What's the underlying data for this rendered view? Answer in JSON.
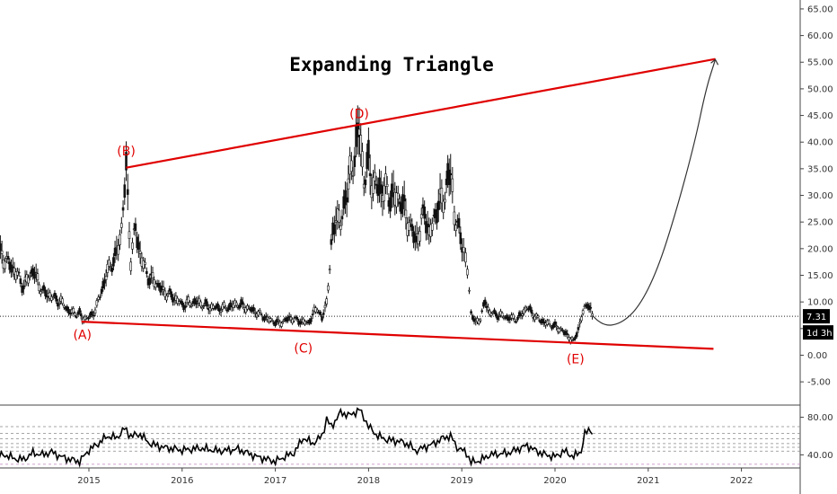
{
  "chart_data": [
    {
      "type": "candlestick",
      "title": "Expanding Triangle",
      "x_tick_labels": [
        "2015",
        "2016",
        "2017",
        "2018",
        "2019",
        "2020",
        "2021",
        "2022"
      ],
      "y_tick_labels": [
        "65.00",
        "60.00",
        "55.00",
        "50.00",
        "45.00",
        "40.00",
        "35.00",
        "30.00",
        "25.00",
        "20.00",
        "15.00",
        "10.00",
        "5.00",
        "0.00",
        "-5.00"
      ],
      "ylim": [
        -7,
        66
      ],
      "price_path": [
        [
          2014.0,
          20
        ],
        [
          2014.1,
          18
        ],
        [
          2014.2,
          16
        ],
        [
          2014.3,
          13
        ],
        [
          2014.4,
          16
        ],
        [
          2014.5,
          12
        ],
        [
          2014.6,
          11
        ],
        [
          2014.7,
          10
        ],
        [
          2014.8,
          8
        ],
        [
          2014.9,
          7.8
        ],
        [
          2014.96,
          6.5
        ],
        [
          2015.05,
          8
        ],
        [
          2015.12,
          11
        ],
        [
          2015.2,
          16
        ],
        [
          2015.28,
          18
        ],
        [
          2015.35,
          24
        ],
        [
          2015.4,
          35
        ],
        [
          2015.45,
          18
        ],
        [
          2015.5,
          24
        ],
        [
          2015.55,
          19
        ],
        [
          2015.62,
          15
        ],
        [
          2015.7,
          14
        ],
        [
          2015.8,
          12
        ],
        [
          2015.9,
          11
        ],
        [
          2016.0,
          9.5
        ],
        [
          2016.15,
          10
        ],
        [
          2016.3,
          9
        ],
        [
          2016.45,
          8.8
        ],
        [
          2016.6,
          9.6
        ],
        [
          2016.75,
          8.5
        ],
        [
          2016.85,
          7.5
        ],
        [
          2016.95,
          6.5
        ],
        [
          2017.05,
          6
        ],
        [
          2017.15,
          7
        ],
        [
          2017.25,
          6.5
        ],
        [
          2017.35,
          6
        ],
        [
          2017.45,
          9
        ],
        [
          2017.5,
          6.8
        ],
        [
          2017.55,
          10
        ],
        [
          2017.6,
          20
        ],
        [
          2017.65,
          27
        ],
        [
          2017.7,
          24
        ],
        [
          2017.75,
          30
        ],
        [
          2017.8,
          33
        ],
        [
          2017.85,
          38
        ],
        [
          2017.9,
          42.5
        ],
        [
          2017.95,
          33
        ],
        [
          2018.0,
          36
        ],
        [
          2018.05,
          32
        ],
        [
          2018.15,
          31
        ],
        [
          2018.25,
          30
        ],
        [
          2018.35,
          29
        ],
        [
          2018.45,
          24
        ],
        [
          2018.5,
          22
        ],
        [
          2018.55,
          23
        ],
        [
          2018.6,
          28
        ],
        [
          2018.65,
          22
        ],
        [
          2018.7,
          26
        ],
        [
          2018.75,
          28
        ],
        [
          2018.82,
          30
        ],
        [
          2018.88,
          36
        ],
        [
          2018.92,
          27
        ],
        [
          2018.97,
          23
        ],
        [
          2019.02,
          20
        ],
        [
          2019.06,
          17
        ],
        [
          2019.1,
          8
        ],
        [
          2019.15,
          6
        ],
        [
          2019.2,
          7
        ],
        [
          2019.25,
          10
        ],
        [
          2019.3,
          8
        ],
        [
          2019.4,
          7.5
        ],
        [
          2019.5,
          7
        ],
        [
          2019.6,
          6.8
        ],
        [
          2019.7,
          9
        ],
        [
          2019.8,
          7
        ],
        [
          2019.9,
          6
        ],
        [
          2020.0,
          5.5
        ],
        [
          2020.08,
          4.5
        ],
        [
          2020.15,
          3.5
        ],
        [
          2020.2,
          2.5
        ],
        [
          2020.25,
          5
        ],
        [
          2020.3,
          8
        ],
        [
          2020.35,
          10
        ],
        [
          2020.4,
          7.5
        ]
      ],
      "projection_path": [
        [
          2020.4,
          7.5
        ],
        [
          2020.5,
          5.5
        ],
        [
          2020.7,
          5.8
        ],
        [
          2020.9,
          9
        ],
        [
          2021.1,
          16
        ],
        [
          2021.3,
          27
        ],
        [
          2021.5,
          40
        ],
        [
          2021.62,
          50
        ],
        [
          2021.72,
          55.5
        ]
      ],
      "triangle_lines": [
        {
          "from": [
            2015.4,
            35.2
          ],
          "to": [
            2021.72,
            55.6
          ]
        },
        {
          "from": [
            2014.92,
            6.3
          ],
          "to": [
            2021.7,
            1.2
          ]
        }
      ],
      "wave_labels": [
        {
          "text": "(A)",
          "x": 2014.93,
          "y": 3.0
        },
        {
          "text": "(B)",
          "x": 2015.4,
          "y": 37.5
        },
        {
          "text": "(C)",
          "x": 2017.3,
          "y": 0.5
        },
        {
          "text": "(D)",
          "x": 2017.9,
          "y": 44.5
        },
        {
          "text": "(E)",
          "x": 2020.22,
          "y": -1.5
        }
      ],
      "current_price": {
        "label": "7.31",
        "value": 7.31
      },
      "time_badge": {
        "label": "1d 3h"
      }
    },
    {
      "type": "line",
      "title": "",
      "y_tick_labels": [
        "80.00",
        "40.00"
      ],
      "ylim": [
        27,
        92
      ],
      "levels": [
        70,
        63,
        57,
        52,
        48,
        44,
        30
      ],
      "values": [
        [
          2014.0,
          38
        ],
        [
          2014.1,
          40
        ],
        [
          2014.2,
          36
        ],
        [
          2014.3,
          35
        ],
        [
          2014.4,
          42
        ],
        [
          2014.5,
          40
        ],
        [
          2014.6,
          43
        ],
        [
          2014.7,
          38
        ],
        [
          2014.8,
          35
        ],
        [
          2014.9,
          33
        ],
        [
          2015.0,
          45
        ],
        [
          2015.1,
          52
        ],
        [
          2015.2,
          60
        ],
        [
          2015.3,
          58
        ],
        [
          2015.38,
          68
        ],
        [
          2015.45,
          60
        ],
        [
          2015.55,
          62
        ],
        [
          2015.65,
          52
        ],
        [
          2015.8,
          48
        ],
        [
          2016.0,
          45
        ],
        [
          2016.2,
          47
        ],
        [
          2016.4,
          44
        ],
        [
          2016.6,
          46
        ],
        [
          2016.8,
          38
        ],
        [
          2017.0,
          33
        ],
        [
          2017.1,
          38
        ],
        [
          2017.2,
          42
        ],
        [
          2017.3,
          58
        ],
        [
          2017.4,
          52
        ],
        [
          2017.5,
          60
        ],
        [
          2017.55,
          78
        ],
        [
          2017.6,
          70
        ],
        [
          2017.7,
          85
        ],
        [
          2017.8,
          82
        ],
        [
          2017.9,
          88
        ],
        [
          2017.95,
          80
        ],
        [
          2018.0,
          70
        ],
        [
          2018.1,
          60
        ],
        [
          2018.2,
          56
        ],
        [
          2018.35,
          54
        ],
        [
          2018.45,
          50
        ],
        [
          2018.5,
          44
        ],
        [
          2018.6,
          48
        ],
        [
          2018.7,
          52
        ],
        [
          2018.8,
          58
        ],
        [
          2018.88,
          60
        ],
        [
          2018.95,
          48
        ],
        [
          2019.05,
          42
        ],
        [
          2019.1,
          32
        ],
        [
          2019.2,
          34
        ],
        [
          2019.3,
          40
        ],
        [
          2019.5,
          42
        ],
        [
          2019.7,
          50
        ],
        [
          2019.8,
          44
        ],
        [
          2019.9,
          40
        ],
        [
          2020.0,
          38
        ],
        [
          2020.1,
          44
        ],
        [
          2020.2,
          38
        ],
        [
          2020.28,
          44
        ],
        [
          2020.32,
          62
        ],
        [
          2020.38,
          68
        ],
        [
          2020.42,
          58
        ]
      ]
    }
  ]
}
